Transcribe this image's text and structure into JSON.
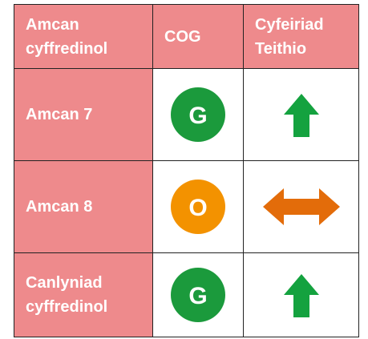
{
  "table": {
    "header": [
      "Amcan cyffredinol",
      "COG",
      "Cyfeiriad Teithio"
    ],
    "rows": [
      [
        "Amcan 7",
        "G"
      ],
      [
        "Amcan 8",
        "O"
      ],
      [
        "Canlyniad cyffredinol",
        "G"
      ]
    ]
  }
}
